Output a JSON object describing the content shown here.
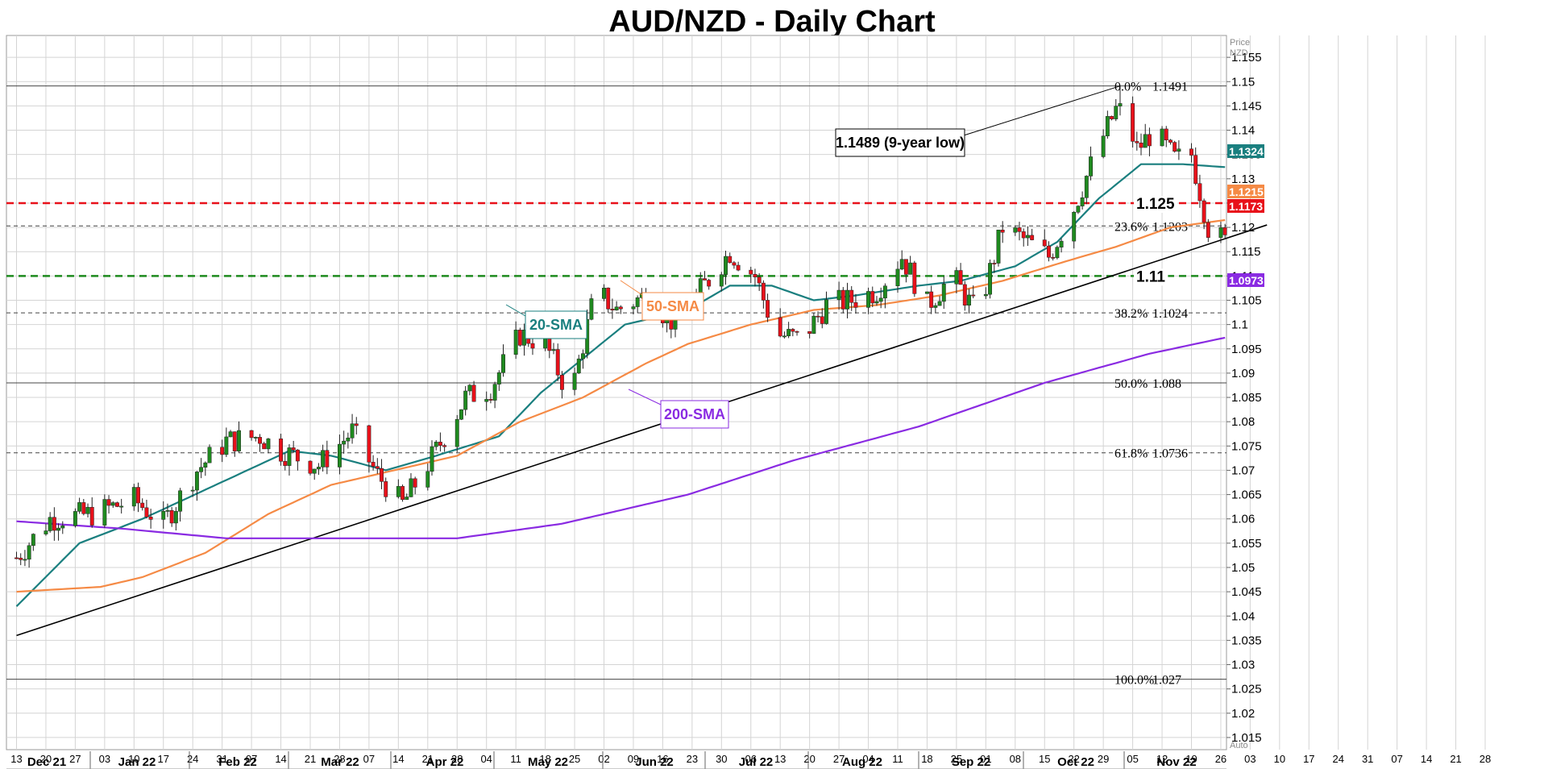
{
  "chart_data": {
    "type": "candlestick",
    "title": "AUD/NZD - Daily Chart",
    "ylabel": "Price",
    "unit": "NZD",
    "ylim": [
      1.0125,
      1.1595
    ],
    "grid": true,
    "y_ticks": [
      "1.155",
      "1.15",
      "1.145",
      "1.14",
      "1.135",
      "1.13",
      "1.125",
      "1.12",
      "1.115",
      "1.11",
      "1.105",
      "1.1",
      "1.095",
      "1.09",
      "1.085",
      "1.08",
      "1.075",
      "1.07",
      "1.065",
      "1.06",
      "1.055",
      "1.05",
      "1.045",
      "1.04",
      "1.035",
      "1.03",
      "1.025",
      "1.02",
      "1.015"
    ],
    "x_ticks": [
      "13",
      "20",
      "27",
      "03",
      "10",
      "17",
      "24",
      "31",
      "07",
      "14",
      "21",
      "28",
      "07",
      "14",
      "21",
      "28",
      "04",
      "11",
      "18",
      "25",
      "02",
      "09",
      "16",
      "23",
      "30",
      "06",
      "13",
      "20",
      "27",
      "04",
      "11",
      "18",
      "25",
      "01",
      "08",
      "15",
      "22",
      "29",
      "05",
      "12",
      "19",
      "26",
      "03",
      "10",
      "17",
      "24",
      "31",
      "07",
      "14",
      "21",
      "28"
    ],
    "months": [
      "Dec 21",
      "Jan 22",
      "Feb 22",
      "Mar 22",
      "Apr 22",
      "May 22",
      "Jun 22",
      "Jul 22",
      "Aug 22",
      "Sep 22",
      "Oct 22",
      "Nov 22"
    ],
    "anchors": [
      [
        0,
        1.052
      ],
      [
        8,
        1.06
      ],
      [
        18,
        1.061
      ],
      [
        28,
        1.064
      ],
      [
        35,
        1.059
      ],
      [
        43,
        1.07
      ],
      [
        50,
        1.076
      ],
      [
        58,
        1.077
      ],
      [
        63,
        1.074
      ],
      [
        72,
        1.071
      ],
      [
        80,
        1.078
      ],
      [
        86,
        1.069
      ],
      [
        92,
        1.063
      ],
      [
        100,
        1.074
      ],
      [
        107,
        1.085
      ],
      [
        113,
        1.087
      ],
      [
        120,
        1.098
      ],
      [
        126,
        1.096
      ],
      [
        132,
        1.085
      ],
      [
        138,
        1.107
      ],
      [
        143,
        1.103
      ],
      [
        150,
        1.106
      ],
      [
        157,
        1.1
      ],
      [
        163,
        1.107
      ],
      [
        170,
        1.115
      ],
      [
        176,
        1.11
      ],
      [
        181,
        1.098
      ],
      [
        187,
        1.097
      ],
      [
        193,
        1.104
      ],
      [
        199,
        1.105
      ],
      [
        205,
        1.107
      ],
      [
        211,
        1.114
      ],
      [
        217,
        1.104
      ],
      [
        223,
        1.11
      ],
      [
        229,
        1.102
      ],
      [
        235,
        1.12
      ],
      [
        241,
        1.117
      ],
      [
        246,
        1.114
      ],
      [
        252,
        1.124
      ],
      [
        258,
        1.137
      ],
      [
        263,
        1.146
      ],
      [
        267,
        1.136
      ],
      [
        271,
        1.14
      ],
      [
        276,
        1.134
      ],
      [
        280,
        1.135
      ],
      [
        284,
        1.12
      ],
      [
        288,
        1.117
      ]
    ],
    "candles": {
      "count": 289
    },
    "series": [
      {
        "name": "20-SMA",
        "color": "#1a7f7f",
        "points": [
          [
            0,
            1.042
          ],
          [
            15,
            1.055
          ],
          [
            30,
            1.06
          ],
          [
            50,
            1.068
          ],
          [
            65,
            1.074
          ],
          [
            75,
            1.073
          ],
          [
            88,
            1.07
          ],
          [
            100,
            1.073
          ],
          [
            115,
            1.077
          ],
          [
            125,
            1.086
          ],
          [
            135,
            1.093
          ],
          [
            145,
            1.1
          ],
          [
            160,
            1.103
          ],
          [
            170,
            1.108
          ],
          [
            180,
            1.108
          ],
          [
            190,
            1.105
          ],
          [
            200,
            1.106
          ],
          [
            215,
            1.108
          ],
          [
            225,
            1.109
          ],
          [
            238,
            1.112
          ],
          [
            248,
            1.117
          ],
          [
            258,
            1.126
          ],
          [
            268,
            1.133
          ],
          [
            278,
            1.133
          ],
          [
            288,
            1.1324
          ]
        ]
      },
      {
        "name": "50-SMA",
        "color": "#f58a45",
        "points": [
          [
            0,
            1.045
          ],
          [
            20,
            1.046
          ],
          [
            30,
            1.048
          ],
          [
            45,
            1.053
          ],
          [
            60,
            1.061
          ],
          [
            75,
            1.067
          ],
          [
            90,
            1.07
          ],
          [
            105,
            1.073
          ],
          [
            120,
            1.08
          ],
          [
            135,
            1.085
          ],
          [
            150,
            1.092
          ],
          [
            160,
            1.096
          ],
          [
            175,
            1.1
          ],
          [
            190,
            1.103
          ],
          [
            205,
            1.104
          ],
          [
            220,
            1.106
          ],
          [
            235,
            1.109
          ],
          [
            250,
            1.113
          ],
          [
            262,
            1.116
          ],
          [
            275,
            1.12
          ],
          [
            288,
            1.1215
          ]
        ]
      },
      {
        "name": "200-SMA",
        "color": "#8a2be2",
        "points": [
          [
            0,
            1.0595
          ],
          [
            25,
            1.058
          ],
          [
            50,
            1.056
          ],
          [
            75,
            1.056
          ],
          [
            105,
            1.056
          ],
          [
            130,
            1.059
          ],
          [
            160,
            1.065
          ],
          [
            185,
            1.072
          ],
          [
            215,
            1.079
          ],
          [
            245,
            1.088
          ],
          [
            270,
            1.094
          ],
          [
            288,
            1.0973
          ]
        ]
      }
    ],
    "trendline": {
      "from": [
        0,
        1.036
      ],
      "to": [
        298,
        1.1205
      ],
      "color": "#000000"
    },
    "horizontal_levels": [
      {
        "price": 1.1491,
        "label": "0.0%",
        "value_label": "1.1491",
        "style": "solid"
      },
      {
        "price": 1.1203,
        "label": "23.6%",
        "value_label": "1.1203",
        "style": "dashed"
      },
      {
        "price": 1.1024,
        "label": "38.2%",
        "value_label": "1.1024",
        "style": "dashed"
      },
      {
        "price": 1.088,
        "label": "50.0%",
        "value_label": "1.088",
        "style": "solid"
      },
      {
        "price": 1.0736,
        "label": "61.8%",
        "value_label": "1.0736",
        "style": "dashed"
      },
      {
        "price": 1.027,
        "label": "100.0%",
        "value_label": "1.027",
        "style": "solid"
      },
      {
        "price": 1.125,
        "label": "",
        "value_label": "1.125",
        "style": "red-dashed",
        "color": "#e8111a"
      },
      {
        "price": 1.11,
        "label": "",
        "value_label": "1.11",
        "style": "green-dashed",
        "color": "#1e8a1e"
      }
    ],
    "annotations": [
      {
        "text": "1.1489 (9-year low)",
        "color": "#000000"
      },
      {
        "text": "20-SMA",
        "color": "#1a7f7f"
      },
      {
        "text": "50-SMA",
        "color": "#f58a45"
      },
      {
        "text": "200-SMA",
        "color": "#8a2be2"
      }
    ],
    "price_badges": [
      {
        "value": "1.1324",
        "color": "#1a7f7f"
      },
      {
        "value": "1.1215",
        "color": "#f58a45"
      },
      {
        "value": "1.1173",
        "color": "#e8111a"
      },
      {
        "value": "1.0973",
        "color": "#8a2be2"
      }
    ],
    "axis_small_labels": [
      "Price",
      "NZD",
      "Auto"
    ]
  }
}
